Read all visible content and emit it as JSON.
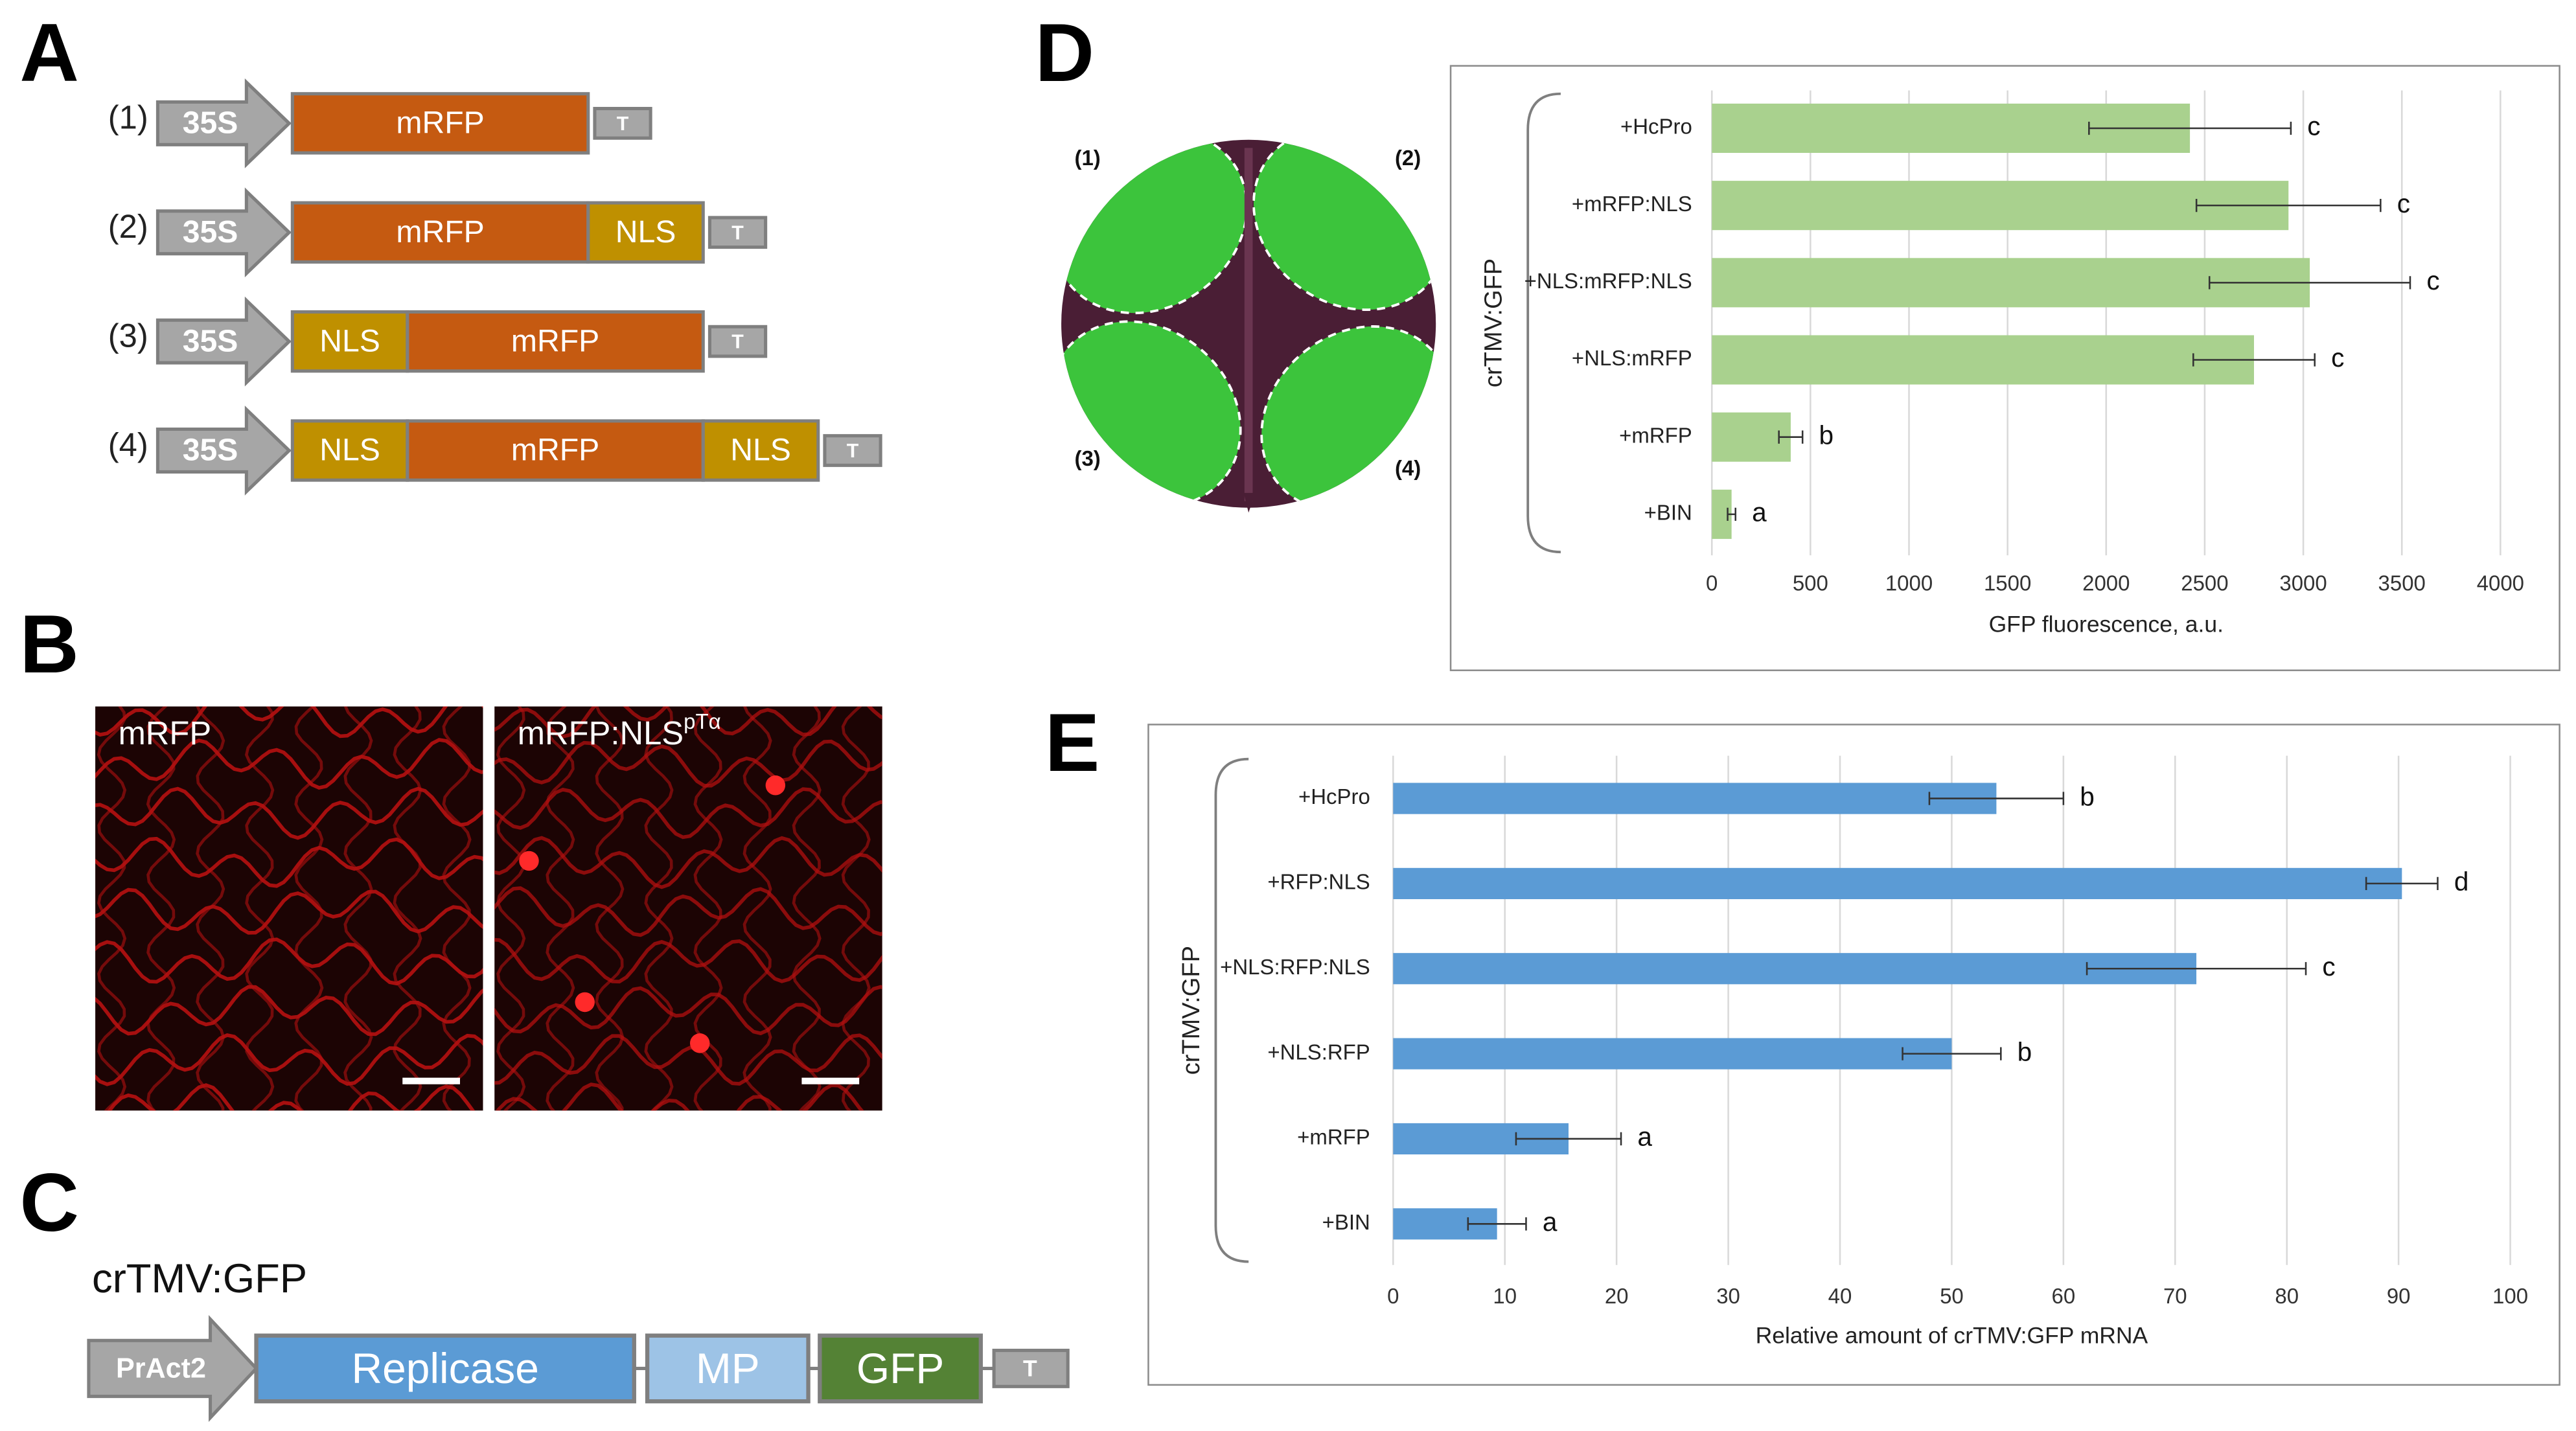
{
  "panel_labels": [
    "A",
    "B",
    "C",
    "D",
    "E"
  ],
  "panel_a": {
    "constructs": [
      {
        "number": "(1)",
        "parts": [
          "35S",
          "mRFP",
          "T"
        ]
      },
      {
        "number": "(2)",
        "parts": [
          "35S",
          "mRFP",
          "NLS",
          "T"
        ]
      },
      {
        "number": "(3)",
        "parts": [
          "35S",
          "NLS",
          "mRFP",
          "T"
        ]
      },
      {
        "number": "(4)",
        "parts": [
          "35S",
          "NLS",
          "mRFP",
          "NLS",
          "T"
        ]
      }
    ]
  },
  "panel_b": {
    "images": [
      {
        "label": "mRFP"
      },
      {
        "label": "mRFP:NLS",
        "superscript": "pTα"
      }
    ]
  },
  "panel_c": {
    "title": "crTMV:GFP",
    "parts": [
      "PrAct2",
      "Replicase",
      "MP",
      "GFP",
      "T"
    ]
  },
  "panel_d": {
    "leaf_labels": [
      "(1)",
      "(2)",
      "(3)",
      "(4)"
    ]
  },
  "chart_data": [
    {
      "type": "bar",
      "orientation": "horizontal",
      "categories": [
        "+HcPro",
        "+mRFP:NLS",
        "+NLS:mRFP:NLS",
        "+NLS:mRFP",
        "+mRFP",
        "+BIN"
      ],
      "values": [
        2425,
        2925,
        3033,
        2750,
        400,
        100
      ],
      "errors": [
        512,
        467,
        509,
        308,
        60,
        20
      ],
      "annotations": [
        "c",
        "c",
        "c",
        "c",
        "b",
        "a"
      ],
      "color": "#a9d18e",
      "y_label": "crTMV:GFP",
      "x_label": "GFP fluorescence, a.u.",
      "xlim": [
        0,
        4000
      ],
      "xticks": [
        0,
        500,
        1000,
        1500,
        2000,
        2500,
        3000,
        3500,
        4000
      ],
      "grid": true
    },
    {
      "type": "bar",
      "orientation": "horizontal",
      "categories": [
        "+HcPro",
        "+RFP:NLS",
        "+NLS:RFP:NLS",
        "+NLS:RFP",
        "+mRFP",
        "+BIN"
      ],
      "values": [
        54,
        90.3,
        71.9,
        50,
        15.7,
        9.3
      ],
      "errors": [
        6,
        3.2,
        9.8,
        4.4,
        4.7,
        2.6
      ],
      "annotations": [
        "b",
        "d",
        "c",
        "b",
        "a",
        "a"
      ],
      "color": "#5b9bd5",
      "y_label": "crTMV:GFP",
      "x_label": "Relative amount of crTMV:GFP mRNA",
      "xlim": [
        0,
        100
      ],
      "xticks": [
        0,
        10,
        20,
        30,
        40,
        50,
        60,
        70,
        80,
        90,
        100
      ],
      "grid": true
    }
  ]
}
